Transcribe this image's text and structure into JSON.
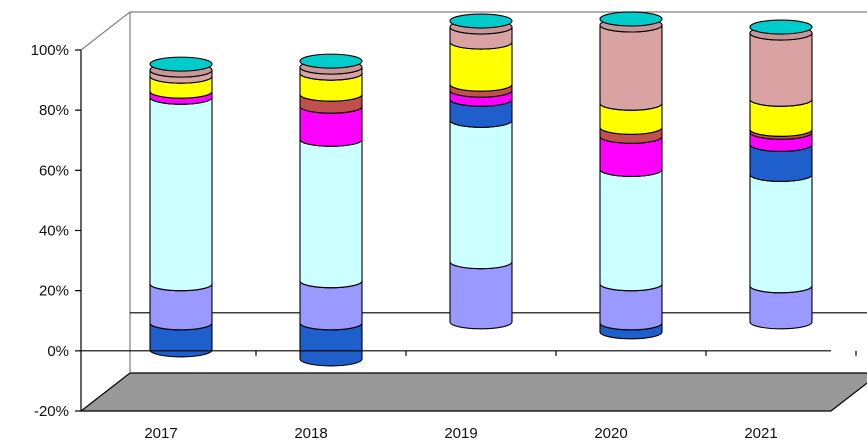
{
  "chart_data": {
    "type": "bar",
    "subtype": "stacked-cylinder-3d",
    "title": "",
    "xlabel": "",
    "ylabel": "",
    "categories": [
      "2017",
      "2018",
      "2019",
      "2020",
      "2021"
    ],
    "y_ticks": [
      "-20%",
      "0%",
      "20%",
      "40%",
      "60%",
      "80%",
      "100%"
    ],
    "ylim": [
      -20,
      100
    ],
    "grid": false,
    "legend": "none",
    "series": [
      {
        "color": "#1f5fcc",
        "values": [
          -9,
          -12,
          0,
          -3,
          0
        ]
      },
      {
        "color": "#9999ff",
        "values": [
          13,
          14,
          20,
          13,
          12
        ]
      },
      {
        "color": "#ccffff",
        "values": [
          62,
          47,
          47,
          38,
          37
        ]
      },
      {
        "color": "#1f5fcc",
        "values": [
          0,
          0,
          7,
          0,
          10
        ]
      },
      {
        "color": "#ff00ff",
        "values": [
          2,
          11,
          3,
          11,
          4
        ]
      },
      {
        "color": "#c0504d",
        "values": [
          0,
          4,
          2,
          3,
          1
        ]
      },
      {
        "color": "#ffff00",
        "values": [
          5,
          7,
          14,
          8,
          10
        ]
      },
      {
        "color": "#d9a3a3",
        "values": [
          2,
          2,
          5,
          26,
          22
        ]
      }
    ]
  }
}
